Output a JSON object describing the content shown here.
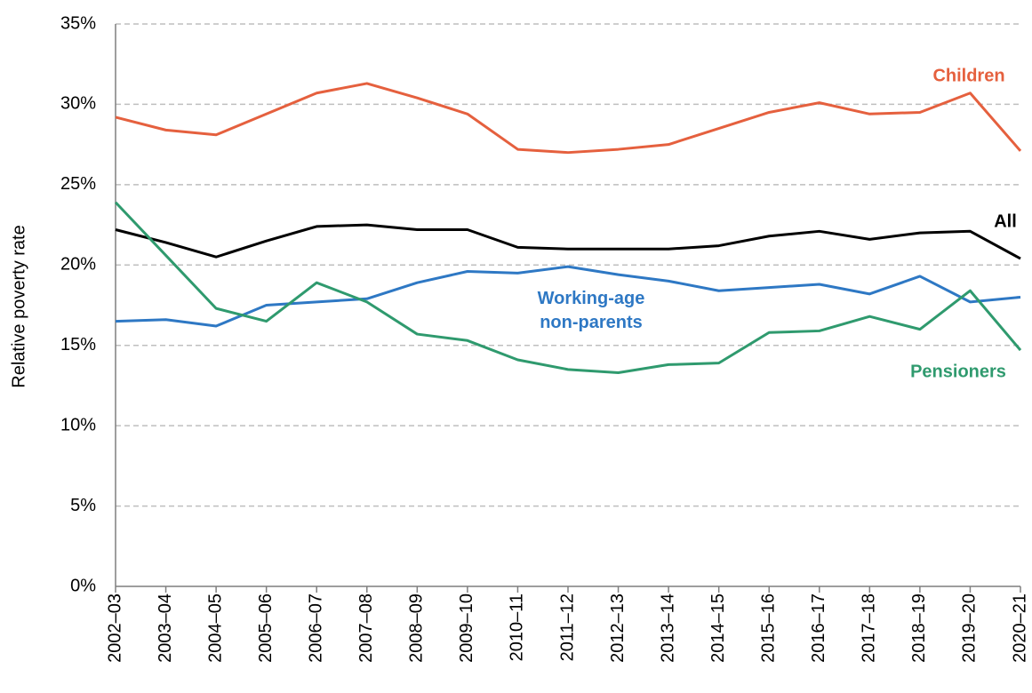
{
  "chart_data": {
    "type": "line",
    "y_label": "Relative poverty rate",
    "categories": [
      "2002–03",
      "2003–04",
      "2004–05",
      "2005–06",
      "2006–07",
      "2007–08",
      "2008–09",
      "2009–10",
      "2010–11",
      "2011–12",
      "2012–13",
      "2013–14",
      "2014–15",
      "2015–16",
      "2016–17",
      "2017–18",
      "2018–19",
      "2019–20",
      "2020–21"
    ],
    "series": [
      {
        "name": "Children",
        "color": "#e5603e",
        "values": [
          29.2,
          28.4,
          28.1,
          29.4,
          30.7,
          31.3,
          30.4,
          29.4,
          27.2,
          27.0,
          27.2,
          27.5,
          28.5,
          29.5,
          30.1,
          29.4,
          29.5,
          30.7,
          27.1
        ]
      },
      {
        "name": "All",
        "color": "#000000",
        "values": [
          22.2,
          21.4,
          20.5,
          21.5,
          22.4,
          22.5,
          22.2,
          22.2,
          21.1,
          21.0,
          21.0,
          21.0,
          21.2,
          21.8,
          22.1,
          21.6,
          22.0,
          22.1,
          20.4
        ]
      },
      {
        "name": "Working-age non-parents",
        "color": "#2e78c4",
        "values": [
          16.5,
          16.6,
          16.2,
          17.5,
          17.7,
          17.9,
          18.9,
          19.6,
          19.5,
          19.9,
          19.4,
          19.0,
          18.4,
          18.6,
          18.8,
          18.2,
          19.3,
          17.7,
          18.0
        ]
      },
      {
        "name": "Pensioners",
        "color": "#2f9a6e",
        "values": [
          23.9,
          20.6,
          17.3,
          16.5,
          18.9,
          17.7,
          15.7,
          15.3,
          14.1,
          13.5,
          13.3,
          13.8,
          13.9,
          15.8,
          15.9,
          16.8,
          16.0,
          18.4,
          14.7
        ]
      }
    ],
    "ylim": [
      0,
      35
    ],
    "yticks": [
      {
        "value": 0,
        "label": "0%"
      },
      {
        "value": 5,
        "label": "5%"
      },
      {
        "value": 10,
        "label": "10%"
      },
      {
        "value": 15,
        "label": "15%"
      },
      {
        "value": 20,
        "label": "20%"
      },
      {
        "value": 25,
        "label": "25%"
      },
      {
        "value": 30,
        "label": "30%"
      },
      {
        "value": 35,
        "label": "35%"
      }
    ],
    "grid": true
  }
}
